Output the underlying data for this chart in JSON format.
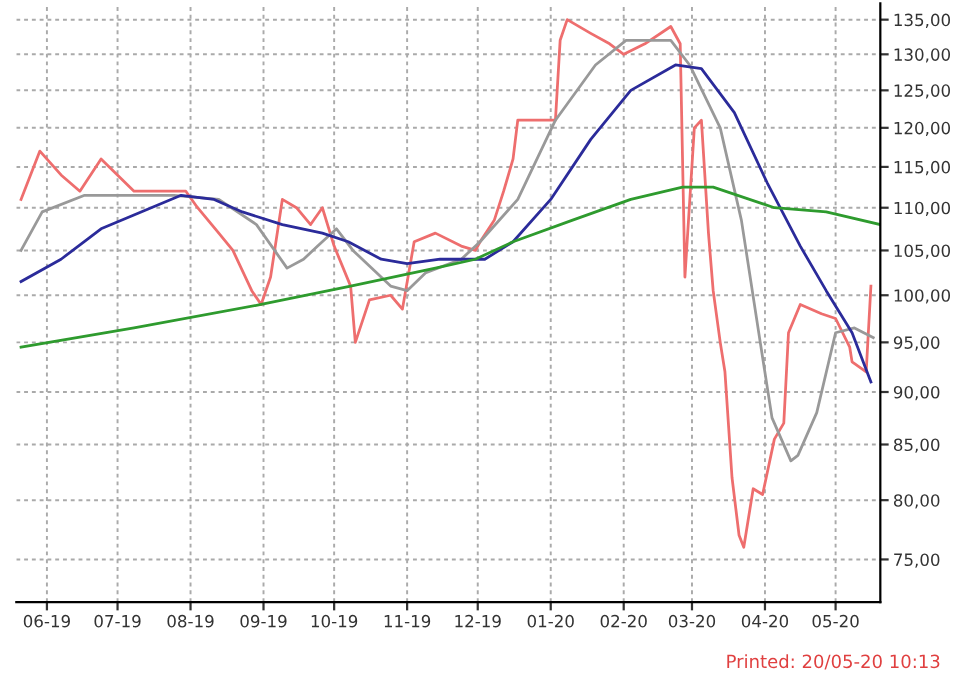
{
  "chart_data": {
    "type": "line",
    "log": "y",
    "grid": true,
    "marker": "none",
    "line_style": "solid",
    "xlim": [
      "2019-05-19",
      "2020-05-20"
    ],
    "xticks": [
      {
        "value": "2019-06-01",
        "label": "06-19"
      },
      {
        "value": "2019-07-01",
        "label": "07-19"
      },
      {
        "value": "2019-08-01",
        "label": "08-19"
      },
      {
        "value": "2019-09-01",
        "label": "09-19"
      },
      {
        "value": "2019-10-01",
        "label": "10-19"
      },
      {
        "value": "2019-11-01",
        "label": "11-19"
      },
      {
        "value": "2019-12-01",
        "label": "12-19"
      },
      {
        "value": "2020-01-01",
        "label": "01-20"
      },
      {
        "value": "2020-02-01",
        "label": "02-20"
      },
      {
        "value": "2020-03-01",
        "label": "03-20"
      },
      {
        "value": "2020-04-01",
        "label": "04-20"
      },
      {
        "value": "2020-05-01",
        "label": "05-20"
      }
    ],
    "ylim": [
      71.6,
      137.4
    ],
    "yticks": [
      {
        "value": 75,
        "label": "75,00"
      },
      {
        "value": 80,
        "label": "80,00"
      },
      {
        "value": 85,
        "label": "85,00"
      },
      {
        "value": 90,
        "label": "90,00"
      },
      {
        "value": 95,
        "label": "95,00"
      },
      {
        "value": 100,
        "label": "100,00"
      },
      {
        "value": 105,
        "label": "105,00"
      },
      {
        "value": 110,
        "label": "110,00"
      },
      {
        "value": 115,
        "label": "115,00"
      },
      {
        "value": 120,
        "label": "120,00"
      },
      {
        "value": 125,
        "label": "125,00"
      },
      {
        "value": 130,
        "label": "130,00"
      },
      {
        "value": 135,
        "label": "135,00"
      }
    ],
    "annotations": [
      "Printed: 20/05-20 10:13"
    ],
    "series": [
      {
        "color": "#ee6e6e",
        "x": [
          "2019-05-21",
          "2019-05-29",
          "2019-06-07",
          "2019-06-15",
          "2019-06-24",
          "2019-07-08",
          "2019-07-19",
          "2019-07-30",
          "2019-08-04",
          "2019-08-13",
          "2019-08-19",
          "2019-08-27",
          "2019-08-31",
          "2019-09-04",
          "2019-09-09",
          "2019-09-15",
          "2019-09-21",
          "2019-09-26",
          "2019-10-01",
          "2019-10-08",
          "2019-10-10",
          "2019-10-16",
          "2019-10-25",
          "2019-10-30",
          "2019-11-04",
          "2019-11-13",
          "2019-11-24",
          "2019-11-30",
          "2019-12-02",
          "2019-12-08",
          "2019-12-12",
          "2019-12-16",
          "2019-12-18",
          "2019-12-27",
          "2020-01-03",
          "2020-01-05",
          "2020-01-08",
          "2020-01-18",
          "2020-01-26",
          "2020-02-01",
          "2020-02-10",
          "2020-02-21",
          "2020-02-25",
          "2020-02-27",
          "2020-03-02",
          "2020-03-05",
          "2020-03-08",
          "2020-03-10",
          "2020-03-13",
          "2020-03-15",
          "2020-03-18",
          "2020-03-21",
          "2020-03-23",
          "2020-03-27",
          "2020-03-31",
          "2020-04-05",
          "2020-04-09",
          "2020-04-11",
          "2020-04-16",
          "2020-04-25",
          "2020-05-01",
          "2020-05-07",
          "2020-05-08",
          "2020-05-14",
          "2020-05-16"
        ],
        "values": [
          111,
          117,
          114,
          112,
          116,
          112,
          112,
          112,
          110,
          107,
          105,
          100.5,
          99,
          102,
          111,
          110,
          108,
          110,
          105.5,
          101,
          95,
          99.5,
          100,
          98.5,
          106,
          107,
          105.5,
          105,
          106,
          108.5,
          112,
          116,
          121,
          121,
          121,
          132,
          135,
          133,
          131.5,
          130,
          131.5,
          134,
          131.5,
          102,
          120,
          121,
          107,
          100.5,
          95,
          92,
          82,
          77,
          76,
          81,
          80.5,
          85.5,
          87,
          96,
          99,
          98,
          97.5,
          94.5,
          93,
          92,
          101
        ]
      },
      {
        "color": "#999999",
        "x": [
          "2019-05-21",
          "2019-05-30",
          "2019-06-17",
          "2019-07-25",
          "2019-08-13",
          "2019-08-29",
          "2019-09-11",
          "2019-09-18",
          "2019-09-24",
          "2019-10-02",
          "2019-10-09",
          "2019-10-25",
          "2019-11-01",
          "2019-11-09",
          "2019-11-24",
          "2019-12-02",
          "2019-12-18",
          "2020-01-03",
          "2020-01-20",
          "2020-02-02",
          "2020-02-21",
          "2020-02-29",
          "2020-03-13",
          "2020-03-22",
          "2020-03-30",
          "2020-04-04",
          "2020-04-12",
          "2020-04-15",
          "2020-04-23",
          "2020-05-01",
          "2020-05-09",
          "2020-05-17"
        ],
        "values": [
          105,
          109.5,
          111.5,
          111.5,
          111,
          108,
          103,
          104,
          105.5,
          107.5,
          105,
          101,
          100.5,
          102.5,
          104,
          106,
          111,
          121,
          128.5,
          132,
          132,
          128.5,
          120,
          108.5,
          95,
          87.5,
          83.5,
          84,
          88,
          96,
          96.5,
          95.5
        ]
      },
      {
        "color": "#2b2b9a",
        "x": [
          "2019-05-21",
          "2019-06-07",
          "2019-06-24",
          "2019-07-11",
          "2019-07-28",
          "2019-08-11",
          "2019-08-23",
          "2019-09-09",
          "2019-09-26",
          "2019-10-07",
          "2019-10-21",
          "2019-11-01",
          "2019-11-15",
          "2019-11-27",
          "2019-12-04",
          "2019-12-16",
          "2020-01-01",
          "2020-01-18",
          "2020-02-04",
          "2020-02-23",
          "2020-03-05",
          "2020-03-19",
          "2020-04-02",
          "2020-04-16",
          "2020-04-27",
          "2020-05-08",
          "2020-05-16"
        ],
        "values": [
          101.5,
          104,
          107.5,
          109.5,
          111.5,
          111,
          109.5,
          108,
          107,
          106,
          104,
          103.5,
          104,
          104,
          104,
          106,
          111,
          118.5,
          125,
          128.5,
          128,
          122,
          113,
          105.5,
          100.5,
          96,
          91
        ]
      },
      {
        "color": "#2e9b2e",
        "x": [
          "2019-05-21",
          "2019-07-08",
          "2019-08-31",
          "2019-10-08",
          "2019-11-13",
          "2019-11-30",
          "2019-12-16",
          "2020-01-10",
          "2020-02-04",
          "2020-02-26",
          "2020-03-10",
          "2020-04-05",
          "2020-04-27",
          "2020-05-20"
        ],
        "values": [
          94.5,
          96.5,
          99,
          101,
          103,
          104,
          106,
          108.5,
          111,
          112.5,
          112.5,
          110,
          109.5,
          108
        ]
      }
    ]
  }
}
